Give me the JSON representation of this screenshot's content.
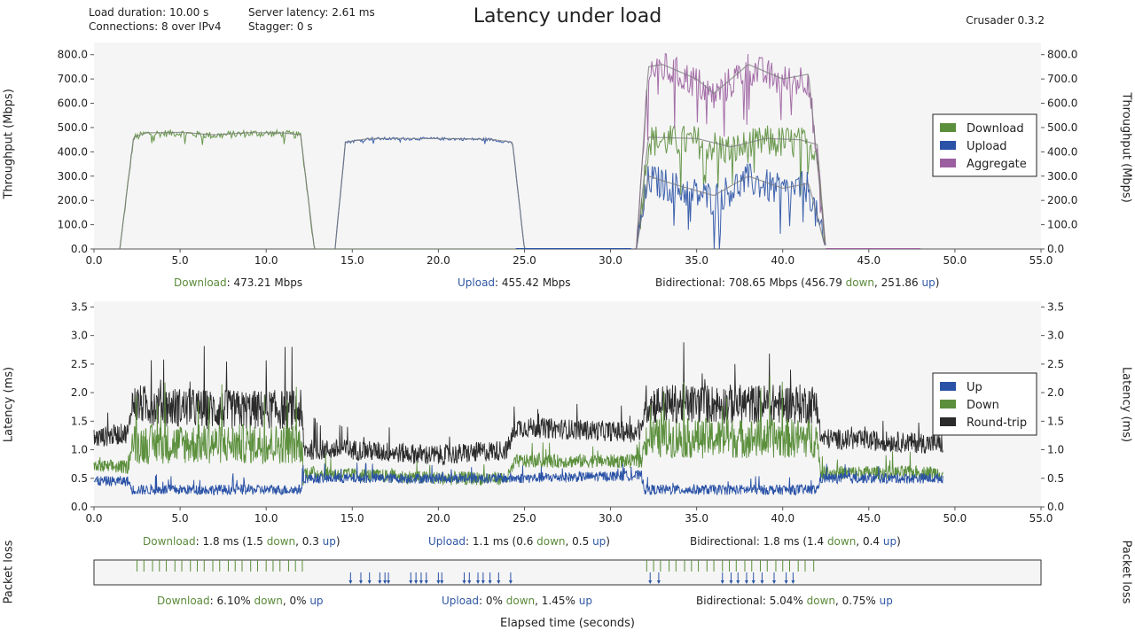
{
  "header": {
    "title": "Latency under load",
    "version": "Crusader 0.3.2",
    "load_duration": "Load duration: 10.00 s",
    "connections": "Connections: 8 over IPv4",
    "server_latency": "Server latency: 2.61 ms",
    "stagger": "Stagger: 0 s"
  },
  "colors": {
    "download": "#5b8f3c",
    "upload": "#2a52a6",
    "aggregate": "#9b5fa0",
    "roundtrip": "#2b2b2b",
    "plot_bg": "#f5f5f5"
  },
  "chart_data": [
    {
      "type": "line",
      "name": "throughput",
      "ylabel": "Throughput (Mbps)",
      "xlim": [
        0,
        55
      ],
      "ylim": [
        0,
        850
      ],
      "x_ticks": [
        "0.0",
        "5.0",
        "10.0",
        "15.0",
        "20.0",
        "25.0",
        "30.0",
        "35.0",
        "40.0",
        "45.0",
        "50.0",
        "55.0"
      ],
      "y_ticks": [
        "0.0",
        "100.0",
        "200.0",
        "300.0",
        "400.0",
        "500.0",
        "600.0",
        "700.0",
        "800.0"
      ],
      "legend": {
        "position": "right",
        "entries": [
          "Download",
          "Upload",
          "Aggregate"
        ]
      },
      "series": [
        {
          "name": "Download",
          "points": [
            [
              1.5,
              0
            ],
            [
              2.3,
              460
            ],
            [
              3,
              478
            ],
            [
              5,
              480
            ],
            [
              7,
              470
            ],
            [
              9,
              479
            ],
            [
              11,
              478
            ],
            [
              12,
              470
            ],
            [
              12.8,
              0
            ],
            [
              31.5,
              0
            ],
            [
              32.2,
              460
            ],
            [
              35,
              455
            ],
            [
              37,
              420
            ],
            [
              39,
              455
            ],
            [
              41,
              450
            ],
            [
              42,
              430
            ],
            [
              42.5,
              0
            ]
          ]
        },
        {
          "name": "Upload",
          "points": [
            [
              14,
              0
            ],
            [
              14.6,
              440
            ],
            [
              16,
              455
            ],
            [
              20,
              455
            ],
            [
              23,
              452
            ],
            [
              24.3,
              440
            ],
            [
              25,
              0
            ],
            [
              31.5,
              0
            ],
            [
              32.2,
              300
            ],
            [
              34,
              260
            ],
            [
              36,
              220
            ],
            [
              38,
              300
            ],
            [
              40,
              250
            ],
            [
              41.5,
              270
            ],
            [
              42.5,
              0
            ]
          ]
        },
        {
          "name": "Aggregate",
          "points": [
            [
              31.5,
              0
            ],
            [
              32.2,
              750
            ],
            [
              33,
              760
            ],
            [
              35,
              700
            ],
            [
              36,
              640
            ],
            [
              38,
              760
            ],
            [
              40,
              700
            ],
            [
              41.5,
              720
            ],
            [
              42.5,
              0
            ]
          ]
        }
      ],
      "summaries": [
        {
          "label": "Download",
          "value": ": 473.21 Mbps"
        },
        {
          "label": "Upload",
          "value": ": 455.42 Mbps"
        },
        {
          "label": "Bidirectional",
          "value": ": 708.65 Mbps (456.79 ",
          "down": "down",
          "mid": ", 251.86 ",
          "up": "up",
          "end": ")"
        }
      ]
    },
    {
      "type": "line",
      "name": "latency",
      "ylabel": "Latency (ms)",
      "xlim": [
        0,
        55
      ],
      "ylim": [
        0,
        3.6
      ],
      "x_ticks": [
        "0.0",
        "5.0",
        "10.0",
        "15.0",
        "20.0",
        "25.0",
        "30.0",
        "35.0",
        "40.0",
        "45.0",
        "50.0",
        "55.0"
      ],
      "y_ticks": [
        "0.0",
        "0.5",
        "1.0",
        "1.5",
        "2.0",
        "2.5",
        "3.0",
        "3.5"
      ],
      "legend": {
        "position": "right",
        "entries": [
          "Up",
          "Down",
          "Round-trip"
        ]
      },
      "series": [
        {
          "name": "Round-trip",
          "points": [
            [
              0,
              1.2
            ],
            [
              2,
              1.3
            ],
            [
              2.2,
              1.8
            ],
            [
              7,
              1.7
            ],
            [
              12,
              1.7
            ],
            [
              12.2,
              1.0
            ],
            [
              15,
              1.0
            ],
            [
              20,
              0.9
            ],
            [
              24,
              1.0
            ],
            [
              24.5,
              1.4
            ],
            [
              31.8,
              1.3
            ],
            [
              32,
              1.8
            ],
            [
              37,
              1.8
            ],
            [
              42,
              1.8
            ],
            [
              42.2,
              1.2
            ],
            [
              49.3,
              1.1
            ]
          ]
        },
        {
          "name": "Down",
          "points": [
            [
              0,
              0.7
            ],
            [
              2,
              0.7
            ],
            [
              2.2,
              1.1
            ],
            [
              7,
              1.1
            ],
            [
              12,
              1.1
            ],
            [
              12.2,
              0.6
            ],
            [
              20,
              0.5
            ],
            [
              24,
              0.5
            ],
            [
              24.5,
              0.8
            ],
            [
              31.8,
              0.8
            ],
            [
              32,
              1.2
            ],
            [
              42,
              1.2
            ],
            [
              42.2,
              0.6
            ],
            [
              49.3,
              0.6
            ]
          ]
        },
        {
          "name": "Up",
          "points": [
            [
              0,
              0.45
            ],
            [
              2,
              0.45
            ],
            [
              2.2,
              0.3
            ],
            [
              12,
              0.3
            ],
            [
              12.2,
              0.5
            ],
            [
              24,
              0.5
            ],
            [
              24.5,
              0.5
            ],
            [
              31.8,
              0.55
            ],
            [
              32,
              0.3
            ],
            [
              42,
              0.3
            ],
            [
              42.2,
              0.5
            ],
            [
              49.3,
              0.5
            ]
          ]
        }
      ],
      "summaries": [
        {
          "label": "Download",
          "value": ": 1.8 ms  (1.5 ",
          "down": "down",
          "mid": ", 0.3 ",
          "up": "up",
          "end": ")"
        },
        {
          "label": "Upload",
          "value": ": 1.1 ms  (0.6 ",
          "down": "down",
          "mid": ", 0.5 ",
          "up": "up",
          "end": ")"
        },
        {
          "label": "Bidirectional",
          "value": ": 1.8 ms  (1.4 ",
          "down": "down",
          "mid": ", 0.4 ",
          "up": "up",
          "end": ")"
        }
      ]
    },
    {
      "type": "scatter",
      "name": "packet_loss",
      "ylabel": "Packet loss",
      "xlim": [
        0,
        55
      ],
      "series": [
        {
          "name": "Download loss",
          "x": [
            2.5,
            2.9,
            3.4,
            3.8,
            4.2,
            4.7,
            5.1,
            5.6,
            6.0,
            6.4,
            6.9,
            7.3,
            7.8,
            8.2,
            8.6,
            9.1,
            9.5,
            10.0,
            10.4,
            10.8,
            11.3,
            11.7,
            12.1,
            32.1,
            32.5,
            32.9,
            33.4,
            33.8,
            34.3,
            34.7,
            35.1,
            35.6,
            36.0,
            36.5,
            36.9,
            37.3,
            37.8,
            38.2,
            38.7,
            39.1,
            39.6,
            40.0,
            40.4,
            40.9,
            41.3,
            41.8
          ]
        },
        {
          "name": "Upload loss",
          "x": [
            14.9,
            15.5,
            16.0,
            16.6,
            16.9,
            17.1,
            18.4,
            18.7,
            19.0,
            19.3,
            20.0,
            20.2,
            21.5,
            21.8,
            22.3,
            22.6,
            23.0,
            23.5,
            24.2,
            32.3,
            32.8,
            36.5,
            37.0,
            37.4,
            37.9,
            38.3,
            38.8,
            39.5,
            40.2,
            40.6
          ]
        }
      ],
      "summaries": [
        {
          "label": "Download",
          "value": ": 6.10% ",
          "down": "down",
          "mid": ", 0% ",
          "up": "up",
          "end": ""
        },
        {
          "label": "Upload",
          "value": ": 0% ",
          "down": "down",
          "mid": ", 1.45% ",
          "up": "up",
          "end": ""
        },
        {
          "label": "Bidirectional",
          "value": ": 5.04% ",
          "down": "down",
          "mid": ", 0.75% ",
          "up": "up",
          "end": ""
        }
      ]
    }
  ],
  "x_axis_title": "Elapsed time (seconds)"
}
